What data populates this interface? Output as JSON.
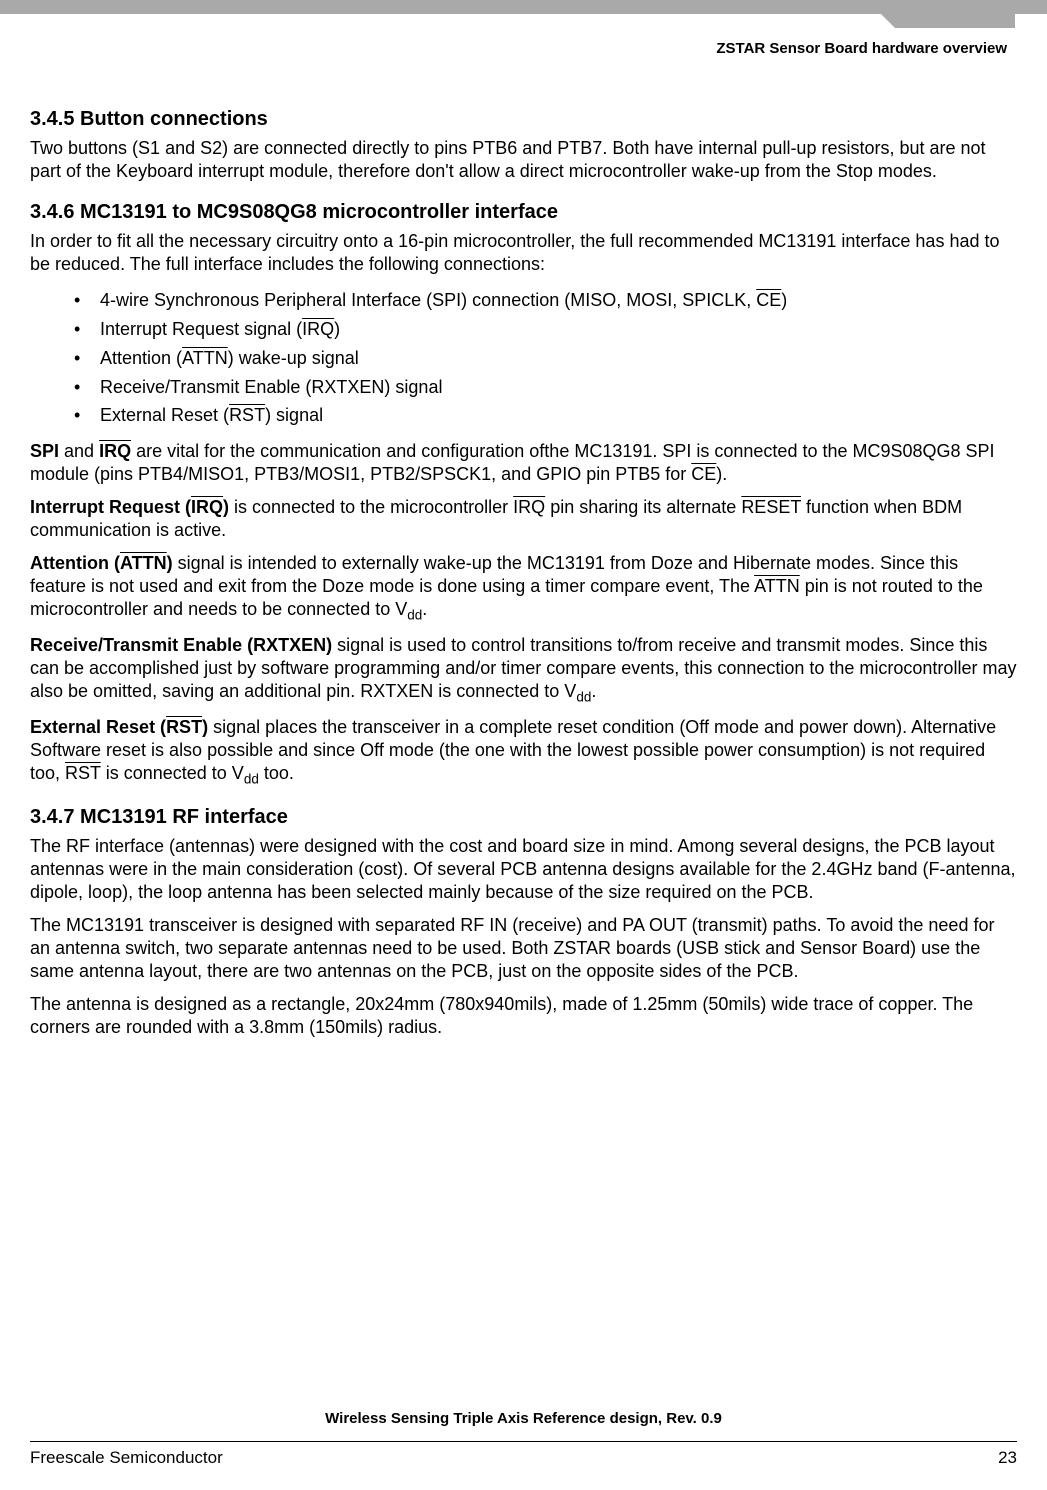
{
  "header": {
    "section_title": "ZSTAR Sensor Board hardware overview"
  },
  "s345": {
    "heading": "3.4.5  Button connections",
    "p1": "Two buttons (S1 and S2) are connected directly to pins PTB6 and PTB7. Both have internal pull-up resistors, but are not part of the Keyboard interrupt module, therefore don't allow a direct microcontroller wake-up from the Stop modes."
  },
  "s346": {
    "heading": "3.4.6  MC13191 to MC9S08QG8 microcontroller interface",
    "intro": "In order to fit all the necessary circuitry onto a 16-pin microcontroller, the full recommended MC13191 interface has had to be reduced. The full interface includes the following connections:",
    "bullets": {
      "b1_pre": "4-wire Synchronous Peripheral Interface (SPI) connection (MISO, MOSI, SPICLK, ",
      "b1_ov": "CE",
      "b1_post": ")",
      "b2_pre": "Interrupt Request signal (",
      "b2_ov": "IRQ",
      "b2_post": ")",
      "b3_pre": "Attention (",
      "b3_ov": "ATTN",
      "b3_post": ") wake-up signal",
      "b4": "Receive/Transmit Enable (RXTXEN) signal",
      "b5_pre": "External Reset (",
      "b5_ov": "RST",
      "b5_post": ") signal"
    },
    "spi": {
      "lead_b": "SPI",
      "mid1": " and ",
      "ov1": "IRQ",
      "rest1": " are vital for the communication and configuration ofthe MC13191. SPI is connected to the MC9S08QG8 SPI module (pins PTB4/MISO1, PTB3/MOSI1, PTB2/SPSCK1, and GPIO pin PTB5 for ",
      "ov2": "CE",
      "rest2": ")."
    },
    "irq": {
      "lead_pre": "Interrupt Request (",
      "lead_ov": "IRQ",
      "lead_post": ")",
      "mid1": " is connected to the microcontroller ",
      "ov1": "IRQ",
      "mid2": " pin sharing its alternate ",
      "ov2": "RESET",
      "rest": " function when BDM communication is active."
    },
    "attn": {
      "lead_pre": "Attention (",
      "lead_ov": "ATTN",
      "lead_post": ")",
      "txt1": " signal is intended to externally wake-up the MC13191 from Doze and Hibernate modes. Since this feature is not used and exit from the Doze mode is done using a timer compare event, The ",
      "ov1": "ATTN",
      "txt2": " pin is not routed to the microcontroller and needs to be connected to V",
      "sub": "dd",
      "txt3": "."
    },
    "rxtxen": {
      "lead": "Receive/Transmit Enable (RXTXEN)",
      "txt1": " signal is used to control transitions to/from receive and transmit modes. Since this can be accomplished just by software programming and/or timer compare events, this connection to the microcontroller may also be omitted, saving an additional pin. RXTXEN is connected to V",
      "sub": "dd",
      "txt2": "."
    },
    "rst": {
      "lead_pre": "External Reset (",
      "lead_ov": "RST",
      "lead_post": ")",
      "txt1": " signal places the transceiver in a complete reset condition (Off mode and power down). Alternative Software reset is also possible and since Off mode (the one with the lowest possible power consumption) is not required too, ",
      "ov1": "RST",
      "txt2": " is connected to V",
      "sub": "dd",
      "txt3": " too."
    }
  },
  "s347": {
    "heading": "3.4.7  MC13191 RF interface",
    "p1": "The RF interface (antennas) were designed with the cost and board size in mind. Among several designs, the PCB layout antennas were in the main consideration (cost). Of several PCB antenna designs available for the 2.4GHz band (F-antenna, dipole, loop), the loop antenna has been selected mainly because of the size required on the PCB.",
    "p2": "The MC13191 transceiver is designed with separated RF IN (receive) and PA OUT (transmit) paths. To avoid the need for an antenna switch, two separate antennas need to be used. Both ZSTAR boards (USB stick and Sensor Board) use the same antenna layout, there are two antennas on the PCB, just on the opposite sides of the PCB.",
    "p3": "The antenna is designed as a rectangle, 20x24mm (780x940mils), made of 1.25mm (50mils) wide trace of copper. The corners are rounded with a 3.8mm (150mils) radius."
  },
  "footer": {
    "doc_title": "Wireless Sensing Triple Axis Reference design, Rev. 0.9",
    "company": "Freescale Semiconductor",
    "page": "23"
  }
}
